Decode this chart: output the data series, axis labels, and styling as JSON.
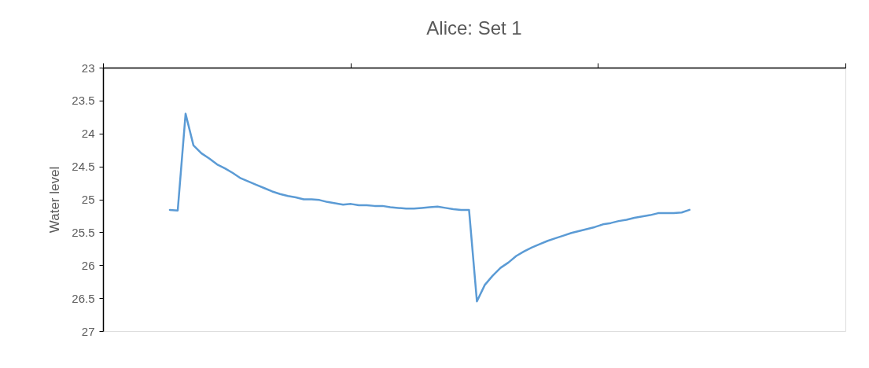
{
  "chart_data": {
    "type": "line",
    "title": "Alice: Set 1",
    "ylabel": "Water level",
    "categories": [
      null,
      null,
      null,
      null,
      null,
      null,
      null,
      null,
      null,
      null,
      null,
      null,
      null,
      null,
      null,
      null,
      null,
      null,
      null,
      null,
      null,
      null,
      null,
      null,
      null,
      null,
      null,
      null,
      null,
      null,
      null,
      null,
      null,
      null,
      null,
      null,
      null,
      null,
      null,
      null,
      null,
      null,
      null,
      null,
      null,
      null,
      null,
      null,
      null,
      null,
      null,
      null,
      null,
      null,
      null,
      null,
      null,
      null,
      null,
      null,
      null,
      null,
      null,
      null,
      null,
      null,
      null
    ],
    "series": [
      {
        "color": "#5b9bd5",
        "values": [
          25.16,
          25.17,
          23.7,
          24.18,
          24.3,
          24.38,
          24.47,
          24.53,
          24.6,
          24.68,
          24.73,
          24.78,
          24.83,
          24.88,
          24.92,
          24.95,
          24.97,
          25.0,
          25.0,
          25.01,
          25.04,
          25.06,
          25.08,
          25.07,
          25.09,
          25.09,
          25.1,
          25.1,
          25.12,
          25.13,
          25.14,
          25.14,
          25.13,
          25.12,
          25.11,
          25.13,
          25.15,
          25.16,
          25.16,
          26.55,
          26.3,
          26.16,
          26.04,
          25.96,
          25.86,
          25.79,
          25.73,
          25.68,
          25.63,
          25.59,
          25.55,
          25.51,
          25.48,
          25.45,
          25.42,
          25.38,
          25.36,
          25.33,
          25.31,
          25.28,
          25.26,
          25.24,
          25.21,
          25.21,
          25.21,
          25.2,
          25.16
        ]
      }
    ],
    "ylim": [
      27,
      23
    ],
    "yticks": [
      23,
      23.5,
      24,
      24.5,
      25,
      25.5,
      26,
      26.5,
      27
    ],
    "tick_labels": "y",
    "grid": false,
    "marker": "none",
    "line_style": "solid"
  }
}
